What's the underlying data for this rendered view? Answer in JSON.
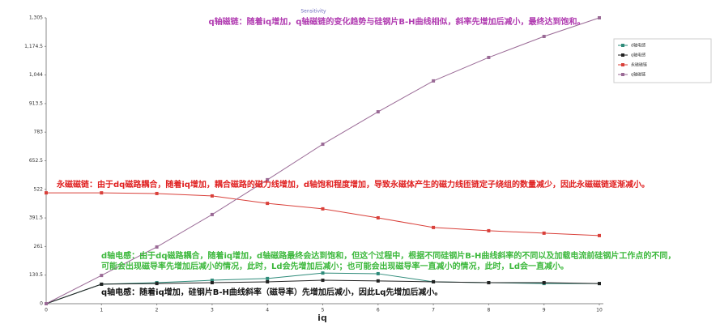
{
  "chart_data": {
    "type": "line",
    "title": "Sensitivity",
    "x_label": "iq",
    "x": [
      0,
      1,
      2,
      3,
      4,
      5,
      6,
      7,
      8,
      9,
      10
    ],
    "xlim": [
      0,
      10
    ],
    "xticks": [
      0,
      1,
      2,
      3,
      4,
      5,
      6,
      7,
      8,
      9,
      10
    ],
    "ylim": [
      0,
      1305
    ],
    "yticks": [
      0,
      130.5,
      261,
      391.5,
      522,
      652.5,
      783,
      913.5,
      {
        "value": 1044,
        "label": "1,044"
      },
      {
        "value": 1174.5,
        "label": "1,174.5"
      },
      {
        "value": 1305,
        "label": "1,305"
      }
    ],
    "series": [
      {
        "name": "d轴电感",
        "color": "#2e8b7a",
        "values": [
          0,
          89,
          96,
          107,
          115,
          140,
          137,
          100,
          96,
          92,
          92
        ]
      },
      {
        "name": "q轴电感",
        "color": "#222222",
        "values": [
          0,
          89,
          92,
          96,
          100,
          107,
          104,
          100,
          96,
          96,
          92
        ]
      },
      {
        "name": "永磁磁链",
        "color": "#d9403a",
        "values": [
          506,
          506,
          503,
          492,
          458,
          433,
          392,
          348,
          333,
          322,
          311
        ]
      },
      {
        "name": "q轴磁链",
        "color": "#9a6a96",
        "values": [
          0,
          129,
          259,
          407,
          566,
          728,
          876,
          1017,
          1124,
          1220,
          1305
        ]
      }
    ],
    "annotations": [
      {
        "text": "q轴磁链：随着iq增加，q轴磁链的变化趋势与硅钢片B-H曲线相似，斜率先增加后减小，最终达到饱和。",
        "color": "#b03ab0"
      },
      {
        "text": "永磁磁链：由于dq磁路耦合，随着iq增加，耦合磁路的磁力线增加，d轴饱和程度增加，导致永磁体产生的磁力线匝链定子绕组的数量减少，因此永磁磁链逐渐减小。",
        "color": "#e02020"
      },
      {
        "text": "d轴电感：由于dq磁路耦合，随着iq增加，d轴磁路最终会达到饱和，但这个过程中，根据不同硅钢片B-H曲线斜率的不同以及加载电流前硅钢片工作点的不同，",
        "color": "#3cb83c"
      },
      {
        "text": "可能会出现磁导率先增加后减小的情况，此时，Ld会先增加后减小；也可能会出现磁导率一直减小的情况，此时，Ld会一直减小。",
        "color": "#3cb83c"
      },
      {
        "text": "q轴电感：随着iq增加，硅钢片B-H曲线斜率（磁导率）先增加后减小，因此Lq先增加后减小。",
        "color": "#111111"
      }
    ],
    "grid": false,
    "legend": "right"
  }
}
